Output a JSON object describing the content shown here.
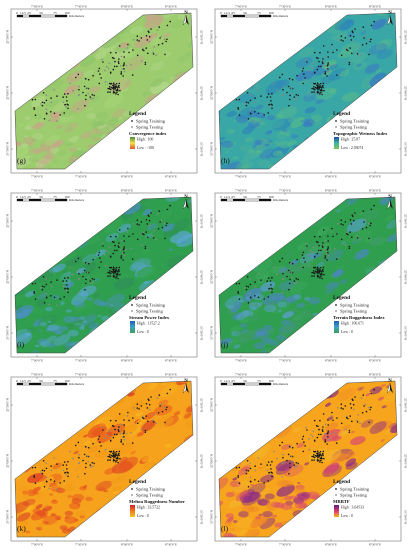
{
  "figure": {
    "coords_top": [
      "7°00'0\"E",
      "7°30'0\"E",
      "8°00'0\"E",
      "8°30'0\"E"
    ],
    "coords_side": [
      "32°30'0\"N",
      "32°00'0\"N",
      "31°30'0\"N"
    ],
    "scale": {
      "ticks": [
        "0",
        "12.5",
        "25",
        "50",
        "75",
        "100"
      ],
      "unit": "Kilometers"
    },
    "north_label": "N",
    "legend": {
      "title": "Legend",
      "training_label": "Spring Training",
      "testing_label": "Spring Testing"
    },
    "colors": {
      "training_dot": "#1a1a1a",
      "testing_dot": "#888888"
    }
  },
  "panels": [
    {
      "letter": "(g)",
      "layer": "Convergence index",
      "high": "High : 100",
      "low": "Low : -100",
      "palette": [
        "#9ccc6e",
        "#a5d476",
        "#b5d88c",
        "#c9a38a",
        "#8fc46a"
      ],
      "ramp": [
        "#4a8b3a",
        "#f3e24a",
        "#e1502b"
      ]
    },
    {
      "letter": "(h)",
      "layer": "Topographic Wetness Index",
      "high": "High : 25.87",
      "low": "Low : 2.03074",
      "palette": [
        "#38a7a6",
        "#2e86b8",
        "#4ab09a",
        "#3a78c4",
        "#56b98c"
      ],
      "ramp": [
        "#1f4aa8",
        "#3cb6a0",
        "#7fc453"
      ]
    },
    {
      "letter": "(i)",
      "layer": "Stream Power Index",
      "high": "High : 11527.2",
      "low": "Low : 0",
      "palette": [
        "#2f9e4e",
        "#35a454",
        "#4b8fc6",
        "#2f8f58",
        "#5aa7d4"
      ],
      "ramp": [
        "#1f5fb8",
        "#3fa0c8",
        "#39a153"
      ]
    },
    {
      "letter": "(j)",
      "layer": "Terrain Ruggedness Index",
      "high": "High : 106.671",
      "low": "Low : 0",
      "palette": [
        "#2f9e4e",
        "#3aa65a",
        "#4b86c6",
        "#3d9a66",
        "#5aa0d4"
      ],
      "ramp": [
        "#1f5fb8",
        "#3fa0c8",
        "#39a153"
      ]
    },
    {
      "letter": "(k)",
      "layer": "Melton Ruggedness Number",
      "high": "High : 33.5722",
      "low": "Low : 0",
      "palette": [
        "#f6a21c",
        "#f8b51e",
        "#e8511f",
        "#f39a16",
        "#d83a26"
      ],
      "ramp": [
        "#d02424",
        "#f07a1a",
        "#f6c21a"
      ]
    },
    {
      "letter": "(l)",
      "layer": "MRRTF",
      "high": "High : 3.64533",
      "low": "Low : 0",
      "palette": [
        "#f7a51c",
        "#f4b52a",
        "#d94a6f",
        "#8a2a86",
        "#f08a28"
      ],
      "ramp": [
        "#5a1d86",
        "#d83a6e",
        "#f7b41c"
      ]
    }
  ]
}
